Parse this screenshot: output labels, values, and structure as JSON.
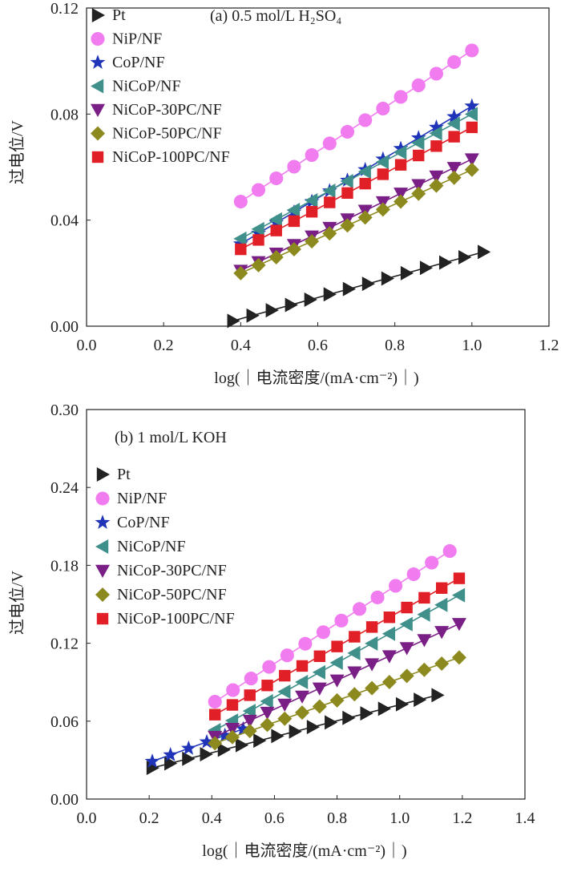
{
  "chart_data": [
    {
      "type": "scatter",
      "panel_title": "(a) 0.5 mol/L H₂SO₄",
      "xlabel": "log(｜电流密度/(mA·cm⁻²)｜)",
      "ylabel": "过电位/V",
      "xlim": [
        0,
        1.2
      ],
      "ylim": [
        0,
        0.12
      ],
      "xticks": [
        "0.0",
        "0.2",
        "0.4",
        "0.6",
        "0.8",
        "1.0",
        "1.2"
      ],
      "yticks": [
        "0.00",
        "0.04",
        "0.08",
        "0.12"
      ],
      "legend_position": "top-left",
      "series": [
        {
          "name": "Pt",
          "marker": "triangle-right",
          "color": "#222222",
          "x_start": 0.38,
          "x_end": 1.03,
          "y_start": 0.002,
          "y_end": 0.028,
          "n": 14
        },
        {
          "name": "NiP/NF",
          "marker": "circle",
          "color": "#f07cf0",
          "x_start": 0.4,
          "x_end": 1.0,
          "y_start": 0.047,
          "y_end": 0.104,
          "n": 14
        },
        {
          "name": "CoP/NF",
          "marker": "star",
          "color": "#1f34b8",
          "x_start": 0.4,
          "x_end": 1.0,
          "y_start": 0.031,
          "y_end": 0.083,
          "n": 14
        },
        {
          "name": "NiCoP/NF",
          "marker": "triangle-left",
          "color": "#3f8f8a",
          "x_start": 0.4,
          "x_end": 1.0,
          "y_start": 0.033,
          "y_end": 0.08,
          "n": 14
        },
        {
          "name": "NiCoP-30PC/NF",
          "marker": "triangle-down",
          "color": "#7a1f86",
          "x_start": 0.4,
          "x_end": 1.0,
          "y_start": 0.021,
          "y_end": 0.063,
          "n": 14
        },
        {
          "name": "NiCoP-50PC/NF",
          "marker": "diamond",
          "color": "#8c8a1e",
          "x_start": 0.4,
          "x_end": 1.0,
          "y_start": 0.02,
          "y_end": 0.059,
          "n": 14
        },
        {
          "name": "NiCoP-100PC/NF",
          "marker": "square",
          "color": "#e11f26",
          "x_start": 0.4,
          "x_end": 1.0,
          "y_start": 0.029,
          "y_end": 0.075,
          "n": 14
        }
      ]
    },
    {
      "type": "scatter",
      "panel_title": "(b) 1 mol/L KOH",
      "xlabel": "log(｜电流密度/(mA·cm⁻²)｜)",
      "ylabel": "过电位/V",
      "xlim": [
        0,
        1.4
      ],
      "ylim": [
        0,
        0.3
      ],
      "xticks": [
        "0.0",
        "0.2",
        "0.4",
        "0.6",
        "0.8",
        "1.0",
        "1.2",
        "1.4"
      ],
      "yticks": [
        "0.00",
        "0.06",
        "0.12",
        "0.18",
        "0.24",
        "0.30"
      ],
      "legend_position": "top-left",
      "series": [
        {
          "name": "Pt",
          "marker": "triangle-right",
          "color": "#222222",
          "x_start": 0.21,
          "x_end": 1.12,
          "y_start": 0.024,
          "y_end": 0.08,
          "n": 17
        },
        {
          "name": "NiP/NF",
          "marker": "circle",
          "color": "#f07cf0",
          "x_start": 0.41,
          "x_end": 1.16,
          "y_start": 0.075,
          "y_end": 0.191,
          "n": 14
        },
        {
          "name": "CoP/NF",
          "marker": "star",
          "color": "#1f34b8",
          "x_start": 0.21,
          "x_end": 0.5,
          "y_start": 0.029,
          "y_end": 0.054,
          "n": 6
        },
        {
          "name": "NiCoP/NF",
          "marker": "triangle-left",
          "color": "#3f8f8a",
          "x_start": 0.41,
          "x_end": 1.19,
          "y_start": 0.053,
          "y_end": 0.157,
          "n": 15
        },
        {
          "name": "NiCoP-30PC/NF",
          "marker": "triangle-down",
          "color": "#7a1f86",
          "x_start": 0.41,
          "x_end": 1.19,
          "y_start": 0.048,
          "y_end": 0.135,
          "n": 15
        },
        {
          "name": "NiCoP-50PC/NF",
          "marker": "diamond",
          "color": "#8c8a1e",
          "x_start": 0.41,
          "x_end": 1.19,
          "y_start": 0.043,
          "y_end": 0.109,
          "n": 15
        },
        {
          "name": "NiCoP-100PC/NF",
          "marker": "square",
          "color": "#e11f26",
          "x_start": 0.41,
          "x_end": 1.19,
          "y_start": 0.065,
          "y_end": 0.17,
          "n": 15
        }
      ]
    }
  ]
}
